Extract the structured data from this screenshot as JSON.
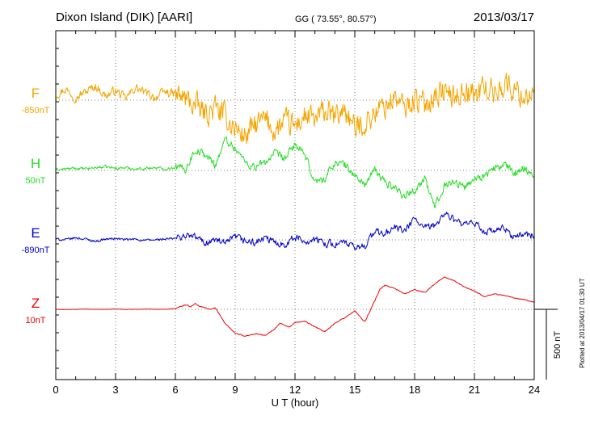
{
  "header": {
    "station": "Dixon Island (DIK)  [AARI]",
    "coords": "GG ( 73.55°,  80.57°)",
    "date": "2013/03/17"
  },
  "footer": {
    "plotted": "Plotted at 2013/04/17 01:30 UT",
    "scale_label": "500 nT"
  },
  "chart_data": {
    "type": "line",
    "title": "Dixon Island (DIK)  [AARI]",
    "xlabel": "U T (hour)",
    "ylabel": "",
    "xlim": [
      0,
      24
    ],
    "x_ticks": [
      "0",
      "3",
      "6",
      "9",
      "12",
      "15",
      "18",
      "21",
      "24"
    ],
    "scale_bar_nT": 500,
    "grid": "dotted",
    "series": [
      {
        "name": "F",
        "baseline_label": "-850nT",
        "color": "#f5a500",
        "x": [
          0,
          0.5,
          1,
          1.5,
          2,
          2.5,
          3,
          3.5,
          4,
          4.5,
          5,
          5.5,
          6,
          6.5,
          7,
          7.5,
          8,
          8.5,
          9,
          9.5,
          10,
          10.5,
          11,
          11.5,
          12,
          12.5,
          13,
          13.5,
          14,
          14.5,
          15,
          15.5,
          16,
          16.5,
          17,
          17.5,
          18,
          18.5,
          19,
          19.5,
          20,
          20.5,
          21,
          21.5,
          22,
          22.5,
          23,
          23.5,
          24
        ],
        "values": [
          40,
          80,
          20,
          60,
          100,
          30,
          70,
          10,
          90,
          50,
          20,
          60,
          40,
          10,
          -40,
          -100,
          -60,
          -120,
          -200,
          -260,
          -180,
          -140,
          -220,
          -160,
          -190,
          -110,
          -150,
          -80,
          -130,
          -60,
          -210,
          -160,
          -90,
          -40,
          20,
          -60,
          10,
          -30,
          40,
          60,
          20,
          80,
          30,
          100,
          50,
          120,
          70,
          30,
          60
        ],
        "noise_nT": 140
      },
      {
        "name": "H",
        "baseline_label": "50nT",
        "color": "#22dd22",
        "x": [
          0,
          0.5,
          1,
          1.5,
          2,
          2.5,
          3,
          3.5,
          4,
          4.5,
          5,
          5.5,
          6,
          6.5,
          7,
          7.5,
          8,
          8.5,
          9,
          9.5,
          10,
          10.5,
          11,
          11.5,
          12,
          12.5,
          13,
          13.5,
          14,
          14.5,
          15,
          15.5,
          16,
          16.5,
          17,
          17.5,
          18,
          18.5,
          19,
          19.5,
          20,
          20.5,
          21,
          21.5,
          22,
          22.5,
          23,
          23.5,
          24
        ],
        "values": [
          5,
          10,
          15,
          10,
          20,
          25,
          15,
          20,
          10,
          15,
          20,
          10,
          25,
          10,
          150,
          110,
          40,
          220,
          160,
          60,
          20,
          60,
          120,
          80,
          190,
          100,
          -80,
          -60,
          60,
          40,
          -40,
          -100,
          0,
          -80,
          -120,
          -180,
          -140,
          -60,
          -260,
          -100,
          -80,
          -120,
          -60,
          -30,
          10,
          40,
          -20,
          20,
          -40
        ],
        "noise_nT": 45
      },
      {
        "name": "E",
        "baseline_label": "-890nT",
        "color": "#0000cc",
        "x": [
          0,
          0.5,
          1,
          1.5,
          2,
          2.5,
          3,
          3.5,
          4,
          4.5,
          5,
          5.5,
          6,
          6.5,
          7,
          7.5,
          8,
          8.5,
          9,
          9.5,
          10,
          10.5,
          11,
          11.5,
          12,
          12.5,
          13,
          13.5,
          14,
          14.5,
          15,
          15.5,
          16,
          16.5,
          17,
          17.5,
          18,
          18.5,
          19,
          19.5,
          20,
          20.5,
          21,
          21.5,
          22,
          22.5,
          23,
          23.5,
          24
        ],
        "values": [
          5,
          0,
          15,
          5,
          -10,
          5,
          10,
          0,
          5,
          -5,
          0,
          5,
          10,
          30,
          20,
          -20,
          0,
          -30,
          20,
          -10,
          -20,
          10,
          -20,
          -30,
          20,
          -10,
          0,
          -20,
          -30,
          -20,
          -60,
          -40,
          60,
          40,
          90,
          60,
          150,
          80,
          100,
          190,
          140,
          100,
          120,
          60,
          60,
          80,
          20,
          40,
          30
        ],
        "noise_nT": 40
      },
      {
        "name": "Z",
        "baseline_label": "10nT",
        "color": "#ee0000",
        "x": [
          0,
          0.5,
          1,
          1.5,
          2,
          2.5,
          3,
          3.5,
          4,
          4.5,
          5,
          5.5,
          6,
          6.25,
          6.5,
          6.75,
          7,
          7.25,
          7.5,
          7.75,
          8,
          8.5,
          9,
          9.5,
          10,
          10.5,
          11,
          11.25,
          11.5,
          11.75,
          12,
          12.5,
          13,
          13.5,
          14,
          14.5,
          15,
          15.5,
          16,
          16.25,
          16.5,
          17,
          17.5,
          18,
          18.5,
          19,
          19.5,
          20,
          20.5,
          21,
          21.5,
          22,
          22.5,
          23,
          23.5,
          24
        ],
        "values": [
          0,
          -2,
          0,
          2,
          0,
          0,
          2,
          0,
          0,
          2,
          0,
          0,
          5,
          20,
          30,
          20,
          40,
          20,
          10,
          0,
          10,
          -100,
          -170,
          -190,
          -175,
          -185,
          -140,
          -95,
          -115,
          -125,
          -95,
          -85,
          -125,
          -160,
          -100,
          -60,
          -10,
          -90,
          60,
          140,
          170,
          150,
          110,
          140,
          120,
          180,
          230,
          200,
          160,
          130,
          90,
          110,
          100,
          80,
          70,
          50
        ],
        "noise_nT": 5
      }
    ]
  }
}
